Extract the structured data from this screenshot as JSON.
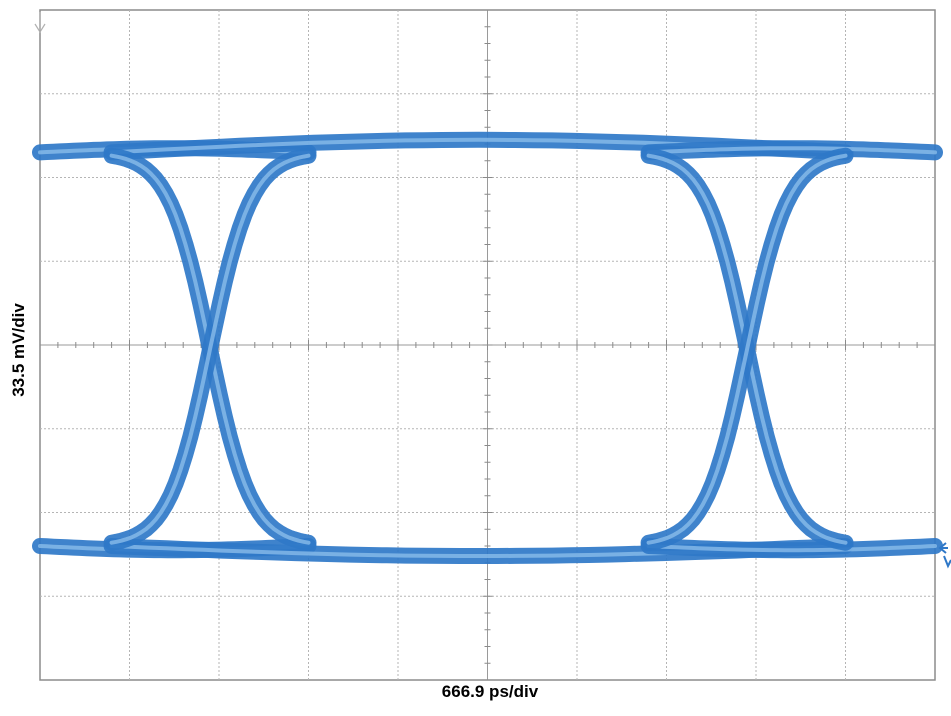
{
  "chart_data": {
    "type": "line",
    "title": "",
    "xlabel": "666.9 ps/div",
    "ylabel": "33.5 mV/div",
    "x_divisions": 10,
    "y_divisions": 8,
    "grid": true,
    "x_range_divisions": [
      0,
      10
    ],
    "y_range_divisions": [
      -4,
      4
    ],
    "trace_color": "#2f78c8",
    "trace_highlight_color": "#8fc0ec",
    "grid_color": "#b5b5b5",
    "description_type": "eye-diagram",
    "crossings_div": [
      1.9,
      7.9
    ],
    "high_level_div": 2.3,
    "low_level_div": -2.4
  }
}
